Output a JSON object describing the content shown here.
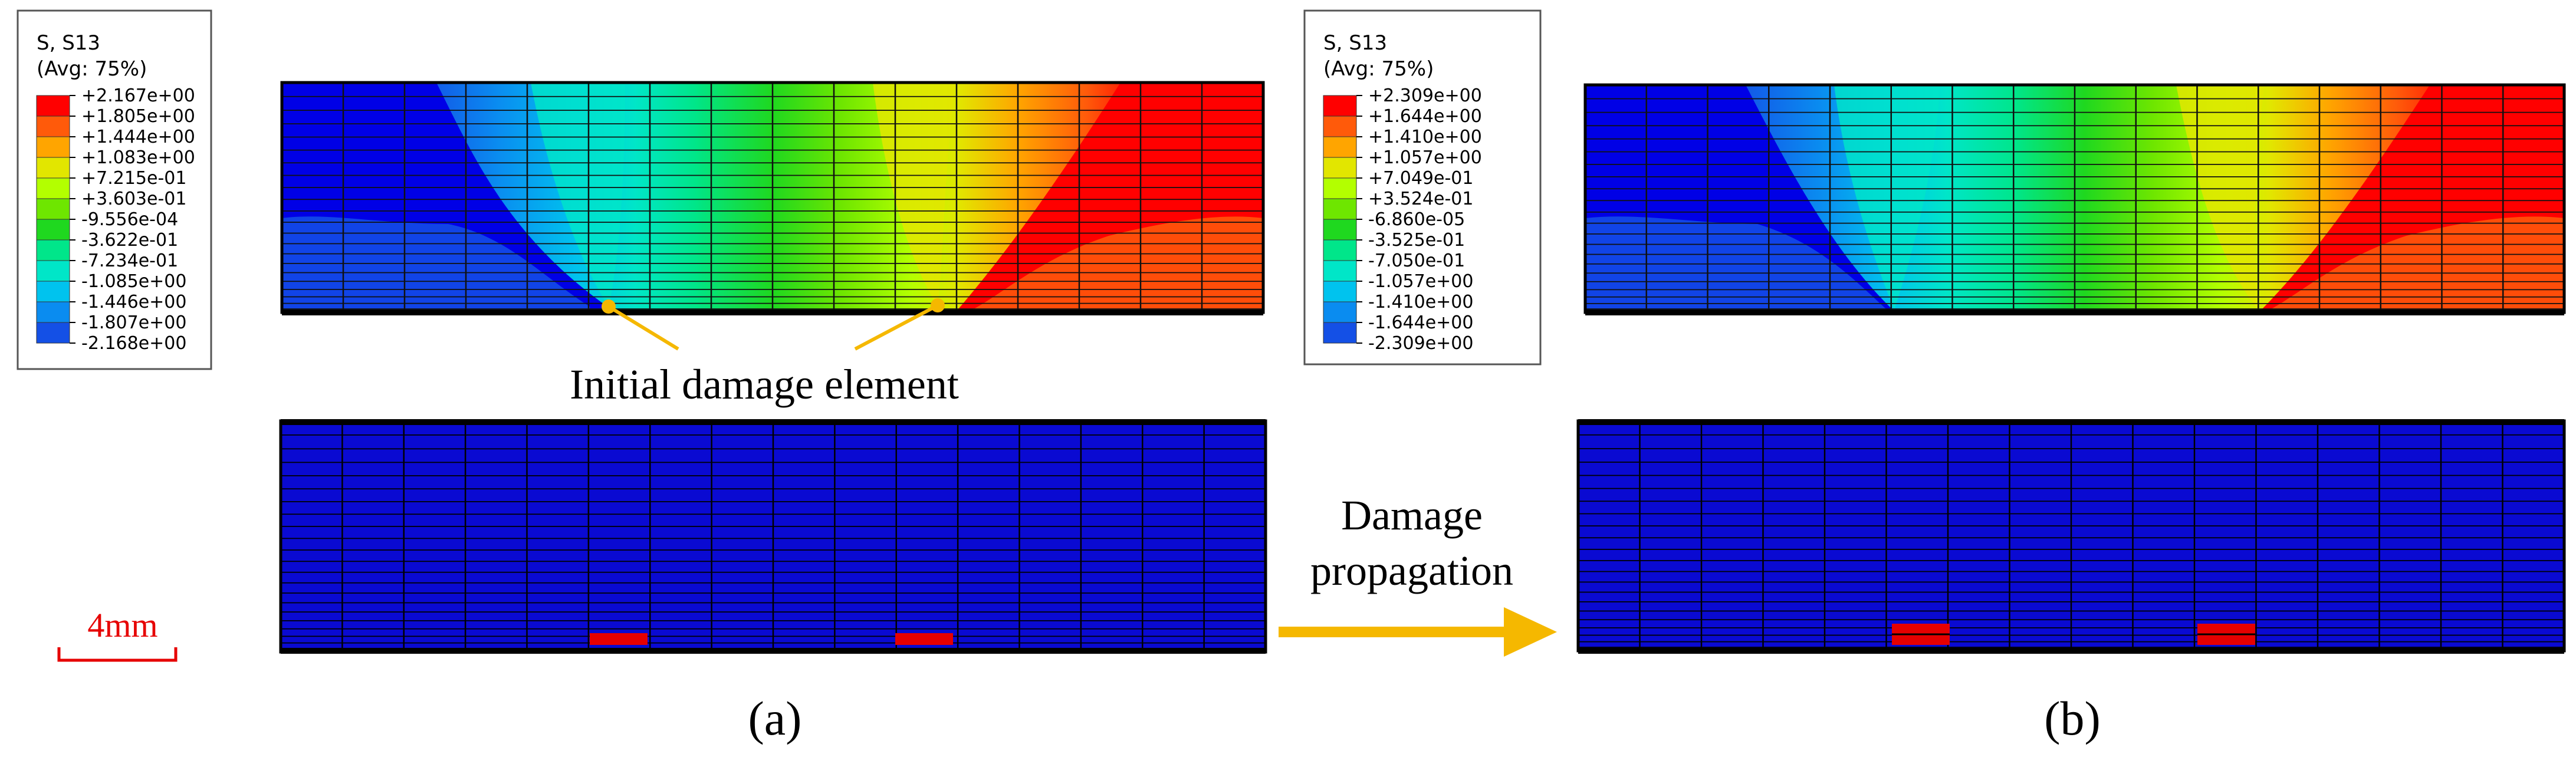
{
  "legend_a": {
    "title": "S, S13",
    "subtitle": "(Avg: 75%)",
    "values": [
      "+2.167e+00",
      "+1.805e+00",
      "+1.444e+00",
      "+1.083e+00",
      "+7.215e-01",
      "+3.603e-01",
      "-9.556e-04",
      "-3.622e-01",
      "-7.234e-01",
      "-1.085e+00",
      "-1.446e+00",
      "-1.807e+00",
      "-2.168e+00"
    ]
  },
  "legend_b": {
    "title": "S, S13",
    "subtitle": "(Avg: 75%)",
    "values": [
      "+2.309e+00",
      "+1.644e+00",
      "+1.410e+00",
      "+1.057e+00",
      "+7.049e-01",
      "+3.524e-01",
      "-6.860e-05",
      "-3.525e-01",
      "-7.050e-01",
      "-1.057e+00",
      "-1.410e+00",
      "-1.644e+00",
      "-2.309e+00"
    ]
  },
  "colors": {
    "contour": [
      "#ff0000",
      "#ff5a0a",
      "#ffa500",
      "#e2e600",
      "#b3ff00",
      "#6ee600",
      "#1fd81f",
      "#00e68a",
      "#00e6c8",
      "#00c3ee",
      "#0a8cf0",
      "#1450e6",
      "#0000e6"
    ],
    "mesh_blue": "#0a0ad2",
    "damage_red": "#e60000",
    "arrow": "#f5b800",
    "leader": "#f5b800",
    "scale_bar": "#e60000"
  },
  "annotations": {
    "initial_damage": "Initial damage element",
    "damage_propagation_line1": "Damage",
    "damage_propagation_line2": "propagation",
    "scale_bar_label": "4mm",
    "caption_a": "(a)",
    "caption_b": "(b)"
  }
}
